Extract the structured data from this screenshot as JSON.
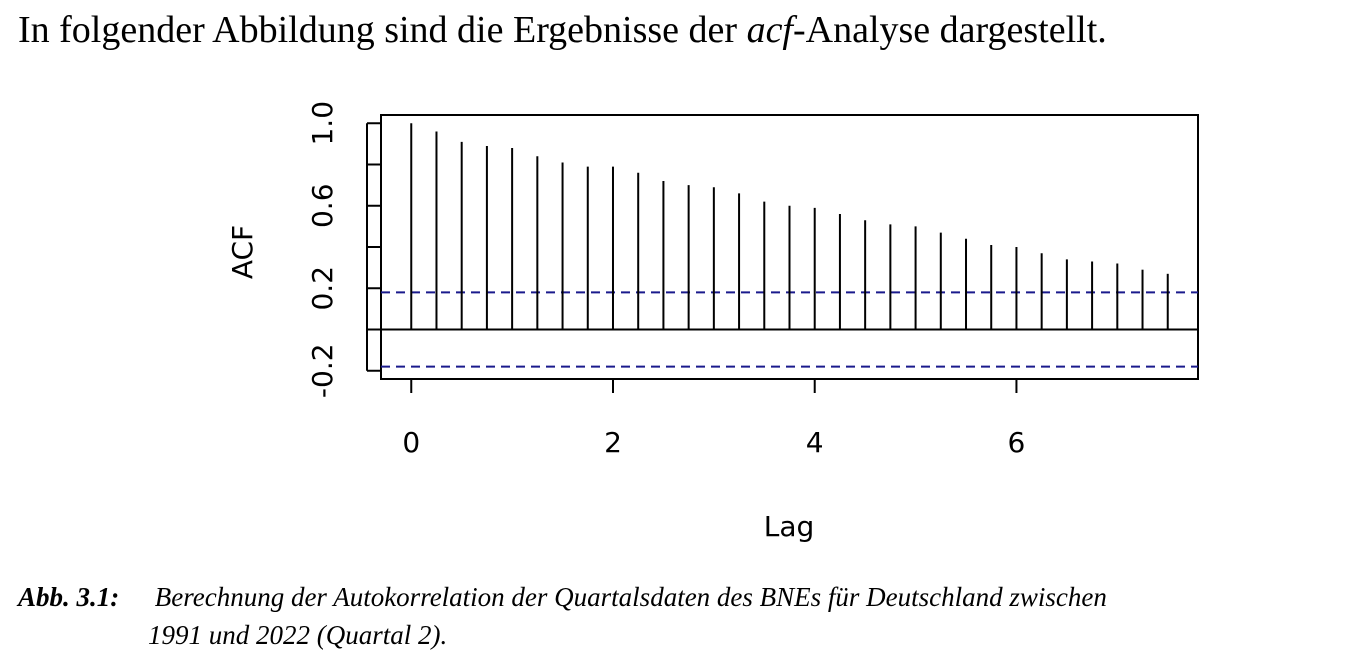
{
  "intro": {
    "before": "In folgender Abbildung sind die Ergebnisse der ",
    "emph": "acf",
    "after": "-Analyse dargestellt."
  },
  "chart_data": {
    "type": "bar",
    "subtype": "acf-stem",
    "xlabel": "Lag",
    "ylabel": "ACF",
    "xlim": [
      -0.3,
      7.8
    ],
    "ylim": [
      -0.24,
      1.04
    ],
    "xticks": [
      0,
      2,
      4,
      6
    ],
    "yticks": [
      -0.2,
      0.2,
      0.6,
      1.0
    ],
    "yticks_minor": [
      0.0,
      0.4,
      0.8
    ],
    "lags": [
      0,
      0.25,
      0.5,
      0.75,
      1.0,
      1.25,
      1.5,
      1.75,
      2.0,
      2.25,
      2.5,
      2.75,
      3.0,
      3.25,
      3.5,
      3.75,
      4.0,
      4.25,
      4.5,
      4.75,
      5.0,
      5.25,
      5.5,
      5.75,
      6.0,
      6.25,
      6.5,
      6.75,
      7.0,
      7.25,
      7.5
    ],
    "values": [
      1.0,
      0.96,
      0.91,
      0.89,
      0.88,
      0.84,
      0.81,
      0.79,
      0.79,
      0.76,
      0.72,
      0.7,
      0.69,
      0.66,
      0.62,
      0.6,
      0.59,
      0.56,
      0.53,
      0.51,
      0.5,
      0.47,
      0.44,
      0.41,
      0.4,
      0.37,
      0.34,
      0.33,
      0.32,
      0.29,
      0.27
    ],
    "confidence_bound": 0.18,
    "colors": {
      "stem": "#000000",
      "bound": "#1a1a8c",
      "zero_line": "#000000"
    },
    "grid": false
  },
  "caption": {
    "label": "Abb. 3.1:",
    "line1": " Berechnung der Autokorrelation der Quartalsdaten des BNEs für Deutschland zwischen",
    "line2": "1991 und 2022 (Quartal 2)."
  }
}
